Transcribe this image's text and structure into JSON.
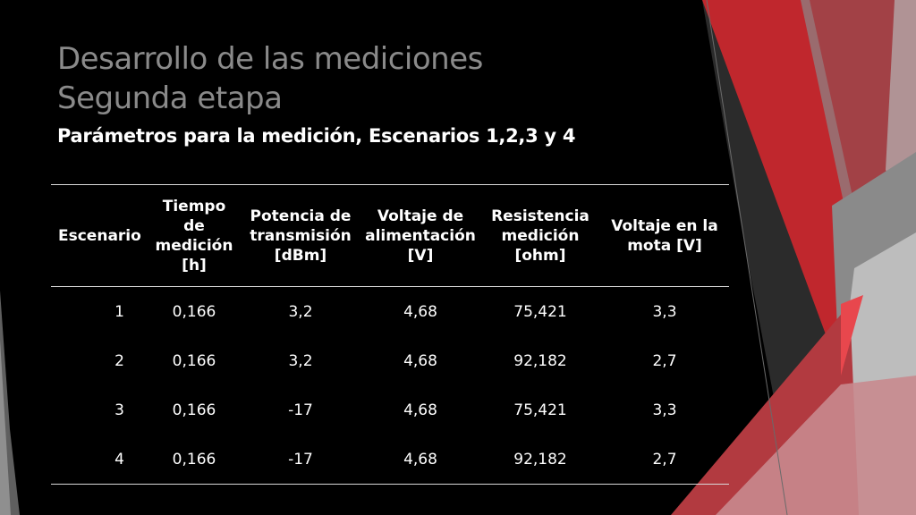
{
  "slide": {
    "title_line1": "Desarrollo de las mediciones",
    "title_line2": "Segunda etapa",
    "subtitle": "Parámetros para la medición, Escenarios 1,2,3 y 4"
  },
  "table": {
    "headers": [
      "Escenario",
      "Tiempo de medición [h]",
      "Potencia de transmisión [dBm]",
      "Voltaje de alimentación [V]",
      "Resistencia medición [ohm]",
      "Voltaje en la mota [V]"
    ],
    "rows": [
      [
        "1",
        "0,166",
        "3,2",
        "4,68",
        "75,421",
        "3,3"
      ],
      [
        "2",
        "0,166",
        "3,2",
        "4,68",
        "92,182",
        "2,7"
      ],
      [
        "3",
        "0,166",
        "-17",
        "4,68",
        "75,421",
        "3,3"
      ],
      [
        "4",
        "0,166",
        "-17",
        "4,68",
        "92,182",
        "2,7"
      ]
    ]
  },
  "colors": {
    "background": "#000000",
    "accent_red": "#c0272d",
    "title_gray": "#8a8a8a"
  }
}
